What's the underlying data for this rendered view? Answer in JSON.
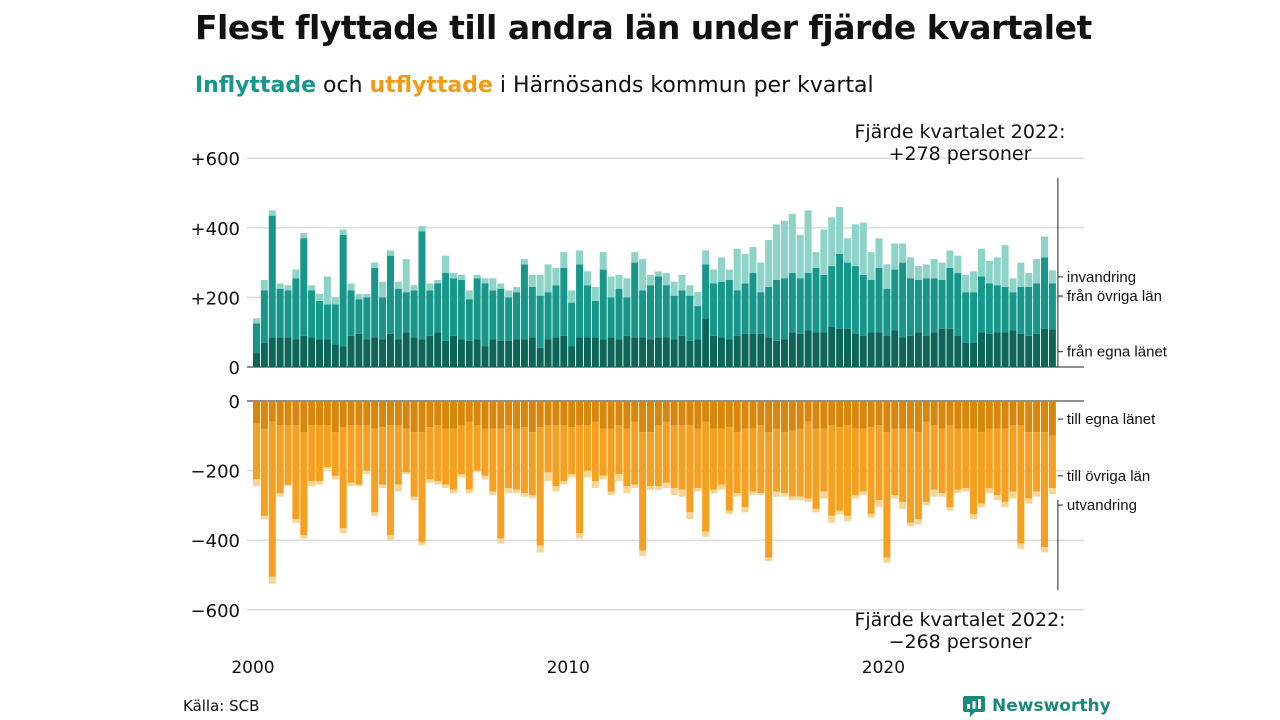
{
  "title": "Flest flyttade till andra län under fjärde kvartalet",
  "subtitle": {
    "part1": "Inflyttade",
    "part2": " och ",
    "part3": "utflyttade",
    "part4": " i Härnösands kommun per kvartal"
  },
  "source": "Källa: SCB",
  "brand": "Newsworthy",
  "colors": {
    "in_own": "#0d6558",
    "in_other": "#17968a",
    "in_imm": "#8ed3c8",
    "out_own": "#d9860d",
    "out_other": "#f5a020",
    "out_emig": "#f8d593",
    "grid": "#dddddd",
    "accent_green": "#17968a",
    "accent_orange": "#f39c12"
  },
  "annotations": {
    "top_line1": "Fjärde kvartalet 2022:",
    "top_line2": "+278 personer",
    "bottom_line1": "Fjärde kvartalet 2022:",
    "bottom_line2": "−268 personer"
  },
  "chart_data": {
    "type": "bar",
    "y_ticks_in": [
      {
        "v": 600,
        "label": "+600"
      },
      {
        "v": 400,
        "label": "+400"
      },
      {
        "v": 200,
        "label": "+200"
      },
      {
        "v": 0,
        "label": "0"
      }
    ],
    "y_ticks_out": [
      {
        "v": 0,
        "label": "0"
      },
      {
        "v": -200,
        "label": "−200"
      },
      {
        "v": -400,
        "label": "−400"
      },
      {
        "v": -600,
        "label": "−600"
      }
    ],
    "x_ticks": [
      {
        "year": 2000,
        "label": "2000"
      },
      {
        "year": 2010,
        "label": "2010"
      },
      {
        "year": 2020,
        "label": "2020"
      }
    ],
    "start_year": 2000,
    "legend_in": [
      "invandring",
      "från övriga län",
      "från egna länet"
    ],
    "legend_out": [
      "till egna länet",
      "till övriga län",
      "utvandring"
    ],
    "inflow": {
      "from_own_county": [
        40,
        70,
        85,
        85,
        85,
        80,
        90,
        85,
        80,
        80,
        65,
        60,
        90,
        95,
        80,
        85,
        80,
        95,
        80,
        100,
        85,
        80,
        90,
        100,
        75,
        90,
        80,
        75,
        80,
        60,
        80,
        75,
        75,
        80,
        80,
        85,
        55,
        80,
        85,
        90,
        60,
        85,
        85,
        85,
        80,
        85,
        80,
        90,
        85,
        85,
        80,
        85,
        85,
        80,
        90,
        75,
        80,
        140,
        90,
        85,
        80,
        90,
        95,
        95,
        95,
        85,
        75,
        80,
        100,
        95,
        105,
        100,
        100,
        115,
        110,
        110,
        95,
        90,
        100,
        100,
        90,
        105,
        85,
        90,
        100,
        90,
        100,
        110,
        110,
        90,
        70,
        70,
        100,
        95,
        100,
        100,
        105,
        95,
        90,
        95,
        110,
        108
      ],
      "from_other_counties": [
        85,
        150,
        350,
        140,
        135,
        175,
        280,
        135,
        110,
        100,
        115,
        320,
        130,
        100,
        120,
        200,
        120,
        225,
        145,
        115,
        135,
        310,
        130,
        140,
        195,
        165,
        170,
        120,
        175,
        180,
        140,
        150,
        125,
        135,
        215,
        145,
        150,
        135,
        150,
        195,
        125,
        210,
        150,
        105,
        200,
        115,
        145,
        110,
        215,
        135,
        155,
        175,
        150,
        125,
        130,
        130,
        95,
        155,
        150,
        160,
        170,
        130,
        145,
        175,
        120,
        145,
        175,
        175,
        170,
        160,
        165,
        185,
        165,
        175,
        215,
        190,
        195,
        175,
        150,
        185,
        135,
        175,
        215,
        165,
        150,
        165,
        155,
        140,
        175,
        180,
        145,
        145,
        160,
        145,
        135,
        130,
        110,
        135,
        140,
        145,
        205,
        132
      ],
      "immigration": [
        15,
        30,
        15,
        15,
        15,
        25,
        15,
        15,
        20,
        80,
        20,
        15,
        20,
        15,
        10,
        15,
        45,
        15,
        20,
        95,
        15,
        15,
        20,
        10,
        50,
        15,
        15,
        25,
        10,
        15,
        35,
        15,
        20,
        15,
        15,
        35,
        60,
        80,
        50,
        45,
        35,
        40,
        40,
        40,
        50,
        60,
        40,
        55,
        30,
        90,
        30,
        15,
        35,
        40,
        45,
        30,
        40,
        40,
        40,
        70,
        30,
        120,
        85,
        75,
        85,
        135,
        160,
        165,
        170,
        125,
        180,
        45,
        130,
        140,
        135,
        70,
        120,
        150,
        80,
        85,
        70,
        75,
        55,
        60,
        40,
        40,
        55,
        50,
        50,
        50,
        50,
        60,
        80,
        65,
        80,
        120,
        40,
        70,
        40,
        70,
        60,
        38
      ]
    },
    "outflow": {
      "to_own_county": [
        65,
        80,
        60,
        70,
        70,
        70,
        90,
        70,
        70,
        70,
        90,
        75,
        70,
        70,
        70,
        80,
        75,
        70,
        70,
        80,
        90,
        90,
        75,
        70,
        80,
        80,
        70,
        60,
        70,
        80,
        80,
        80,
        70,
        80,
        75,
        90,
        75,
        70,
        70,
        70,
        75,
        70,
        70,
        60,
        80,
        80,
        70,
        80,
        60,
        90,
        90,
        70,
        60,
        70,
        70,
        70,
        80,
        60,
        80,
        80,
        75,
        90,
        80,
        80,
        70,
        90,
        80,
        90,
        85,
        80,
        60,
        80,
        80,
        70,
        75,
        70,
        80,
        80,
        75,
        70,
        90,
        80,
        80,
        80,
        90,
        60,
        70,
        80,
        70,
        80,
        80,
        80,
        90,
        80,
        80,
        80,
        70,
        70,
        90,
        90,
        90,
        100
      ],
      "to_other_counties": [
        160,
        250,
        445,
        195,
        170,
        270,
        295,
        160,
        160,
        120,
        125,
        290,
        165,
        170,
        130,
        240,
        165,
        315,
        170,
        125,
        185,
        315,
        150,
        160,
        160,
        175,
        140,
        195,
        130,
        135,
        180,
        315,
        180,
        175,
        190,
        180,
        340,
        135,
        175,
        160,
        135,
        310,
        130,
        170,
        135,
        180,
        140,
        165,
        180,
        340,
        155,
        175,
        175,
        180,
        185,
        250,
        170,
        315,
        175,
        160,
        240,
        175,
        225,
        180,
        195,
        360,
        180,
        175,
        190,
        195,
        220,
        230,
        180,
        260,
        240,
        260,
        190,
        180,
        250,
        215,
        360,
        190,
        210,
        270,
        250,
        230,
        185,
        185,
        235,
        175,
        170,
        245,
        205,
        170,
        190,
        210,
        190,
        340,
        190,
        170,
        330,
        150
      ],
      "emigration": [
        20,
        10,
        20,
        10,
        5,
        10,
        10,
        15,
        10,
        5,
        10,
        15,
        10,
        5,
        10,
        10,
        10,
        15,
        20,
        5,
        10,
        10,
        10,
        10,
        10,
        10,
        10,
        10,
        5,
        10,
        10,
        15,
        15,
        10,
        10,
        10,
        20,
        25,
        15,
        10,
        10,
        15,
        20,
        20,
        10,
        10,
        20,
        20,
        10,
        15,
        10,
        10,
        15,
        20,
        20,
        20,
        10,
        15,
        10,
        15,
        10,
        10,
        15,
        10,
        5,
        10,
        15,
        10,
        10,
        10,
        10,
        10,
        20,
        20,
        10,
        15,
        10,
        10,
        10,
        20,
        15,
        10,
        20,
        10,
        15,
        10,
        20,
        10,
        10,
        10,
        10,
        15,
        10,
        15,
        15,
        15,
        20,
        15,
        15,
        15,
        15,
        18
      ]
    }
  }
}
